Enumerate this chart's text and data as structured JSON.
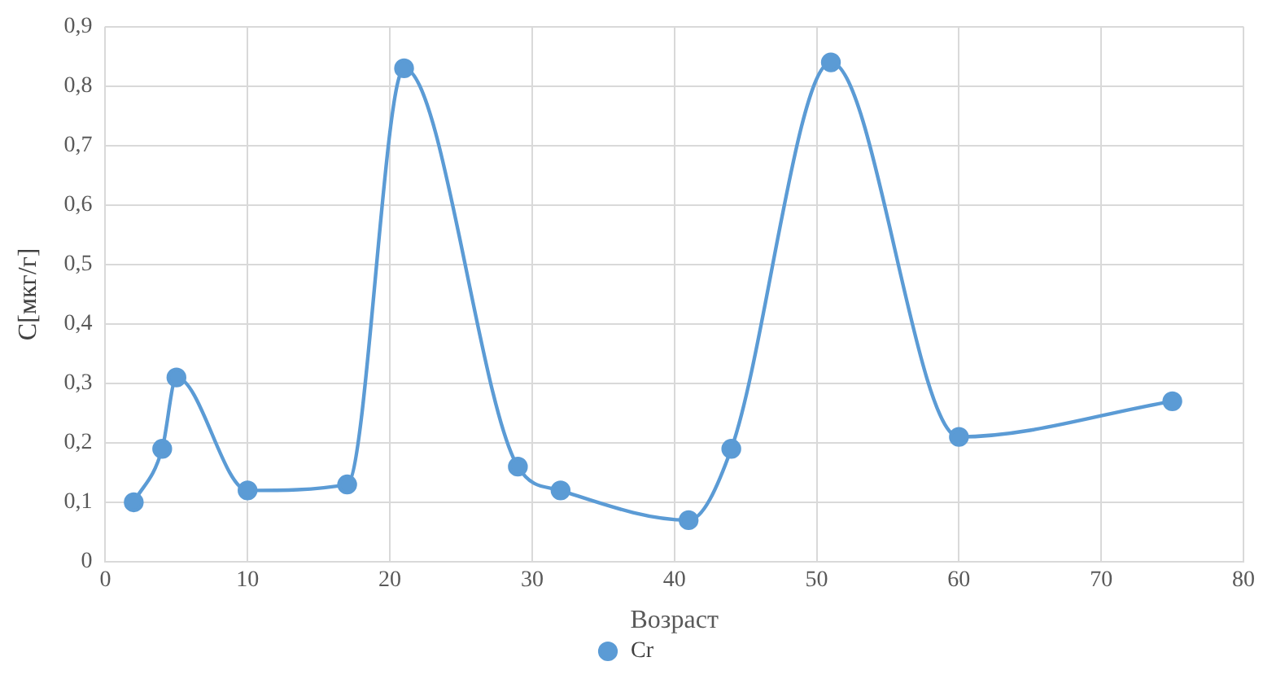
{
  "chart_data": {
    "type": "line",
    "xlabel": "Возраст",
    "ylabel": "C[мкг/г]",
    "x": [
      2,
      4,
      5,
      10,
      17,
      21,
      29,
      32,
      41,
      44,
      51,
      60,
      75
    ],
    "series": [
      {
        "name": "Cr",
        "color": "#5b9bd5",
        "values": [
          0.1,
          0.19,
          0.31,
          0.12,
          0.13,
          0.83,
          0.16,
          0.12,
          0.07,
          0.19,
          0.84,
          0.21,
          0.27
        ]
      }
    ],
    "xlim": [
      0,
      80
    ],
    "xticks": [
      0,
      10,
      20,
      30,
      40,
      50,
      60,
      70,
      80
    ],
    "ylim": [
      0,
      0.9
    ],
    "yticks": [
      0,
      {
        "value": 0.1,
        "label": "0,1"
      },
      {
        "value": 0.2,
        "label": "0,2"
      },
      {
        "value": 0.3,
        "label": "0,3"
      },
      {
        "value": 0.4,
        "label": "0,4"
      },
      {
        "value": 0.5,
        "label": "0,5"
      },
      {
        "value": 0.6,
        "label": "0,6"
      },
      {
        "value": 0.7,
        "label": "0,7"
      },
      {
        "value": 0.8,
        "label": "0,8"
      },
      {
        "value": 0.9,
        "label": "0,9"
      }
    ],
    "grid": true,
    "legend": "bottom",
    "marker": "circle",
    "line_style": "solid"
  }
}
